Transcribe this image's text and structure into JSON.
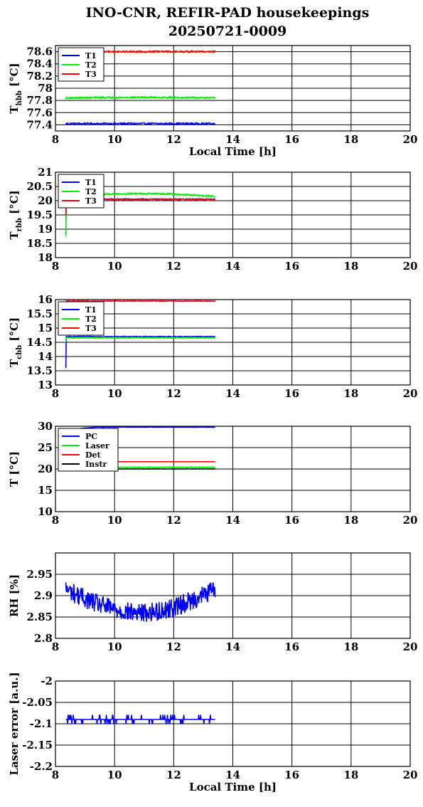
{
  "figure": {
    "title_line1": "INO-CNR, REFIR-PAD housekeepings",
    "title_line2": "20250721-0009"
  },
  "colors": {
    "blue": "#0000ff",
    "green": "#00ee00",
    "red": "#ff0000",
    "black": "#000000"
  },
  "chart_data": [
    {
      "id": "hbb",
      "type": "line",
      "ylabel_main": "T",
      "ylabel_sub": "hbb",
      "ylabel_unit": "[°C]",
      "xlabel": "Local Time [h]",
      "xlim": [
        8,
        20
      ],
      "xticks": [
        8,
        10,
        12,
        14,
        16,
        18,
        20
      ],
      "ylim": [
        77.3,
        78.7
      ],
      "yticks": [
        77.4,
        77.6,
        77.8,
        78,
        78.2,
        78.4,
        78.6
      ],
      "grid": true,
      "legend": "top-left",
      "series": [
        {
          "name": "T1",
          "color": "blue",
          "t_start": 8.35,
          "t_end": 13.4,
          "base": 77.42,
          "noise": 0.015,
          "drift": 0
        },
        {
          "name": "T2",
          "color": "green",
          "t_start": 8.35,
          "t_end": 13.4,
          "base": 77.84,
          "noise": 0.015,
          "drift": 0.01
        },
        {
          "name": "T3",
          "color": "red",
          "t_start": 8.35,
          "t_end": 13.4,
          "base": 78.6,
          "noise": 0.015,
          "drift": 0
        }
      ]
    },
    {
      "id": "rbb",
      "type": "line",
      "ylabel_main": "T",
      "ylabel_sub": "rbb",
      "ylabel_unit": "[°C]",
      "xlabel": "",
      "xlim": [
        8,
        20
      ],
      "xticks": [
        8,
        10,
        12,
        14,
        16,
        18,
        20
      ],
      "ylim": [
        18,
        21
      ],
      "yticks": [
        18,
        18.5,
        19,
        19.5,
        20,
        20.5,
        21
      ],
      "grid": true,
      "legend": "top-left",
      "series": [
        {
          "name": "T1",
          "color": "blue",
          "t_start": 8.35,
          "t_end": 13.4,
          "base": 20.05,
          "noise": 0.02,
          "drift": 0,
          "start_dip": 18.8
        },
        {
          "name": "T2",
          "color": "green",
          "t_start": 8.35,
          "t_end": 13.4,
          "base": 20.15,
          "noise": 0.03,
          "drift": 0.1,
          "start_dip": 18.75
        },
        {
          "name": "T3",
          "color": "red",
          "t_start": 8.35,
          "t_end": 13.4,
          "base": 20.05,
          "noise": 0.02,
          "drift": 0,
          "start_dip": 19.5
        }
      ]
    },
    {
      "id": "cbb",
      "type": "line",
      "ylabel_main": "T",
      "ylabel_sub": "cbb",
      "ylabel_unit": "[°C]",
      "xlabel": "",
      "xlim": [
        8,
        20
      ],
      "xticks": [
        8,
        10,
        12,
        14,
        16,
        18,
        20
      ],
      "ylim": [
        13,
        16
      ],
      "yticks": [
        13,
        13.5,
        14,
        14.5,
        15,
        15.5,
        16
      ],
      "grid": true,
      "legend": "top-left",
      "series": [
        {
          "name": "T1",
          "color": "blue",
          "t_start": 8.35,
          "t_end": 13.4,
          "base": 14.7,
          "noise": 0.015,
          "drift": 0,
          "start_dip": 13.6
        },
        {
          "name": "T2",
          "color": "green",
          "t_start": 8.35,
          "t_end": 13.4,
          "base": 14.66,
          "noise": 0.015,
          "drift": 0,
          "start_dip": 14.5
        },
        {
          "name": "T3",
          "color": "red",
          "t_start": 8.35,
          "t_end": 13.4,
          "base": 15.95,
          "noise": 0.015,
          "drift": 0
        }
      ]
    },
    {
      "id": "temps",
      "type": "line",
      "ylabel_main": "T [°C]",
      "ylabel_sub": "",
      "ylabel_unit": "",
      "xlabel": "",
      "xlim": [
        8,
        20
      ],
      "xticks": [
        8,
        10,
        12,
        14,
        16,
        18,
        20
      ],
      "ylim": [
        10,
        30
      ],
      "yticks": [
        10,
        15,
        20,
        25,
        30
      ],
      "grid": true,
      "legend": "top-left",
      "series": [
        {
          "name": "PC",
          "color": "blue",
          "t_start": 8.35,
          "t_end": 13.4,
          "base": 29.8,
          "noise": 0.04,
          "drift": 0,
          "rise_from": 28.8
        },
        {
          "name": "Laser",
          "color": "green",
          "t_start": 8.35,
          "t_end": 13.4,
          "base": 20.4,
          "noise": 0.1,
          "drift": 0
        },
        {
          "name": "Det",
          "color": "red",
          "t_start": 8.35,
          "t_end": 13.4,
          "base": 21.7,
          "noise": 0.02,
          "drift": 0
        },
        {
          "name": "Instr",
          "color": "black",
          "t_start": 8.35,
          "t_end": 13.4,
          "base": 20.0,
          "noise": 0.02,
          "drift": 0
        }
      ]
    },
    {
      "id": "rh",
      "type": "line",
      "ylabel_main": "RH [%]",
      "ylabel_sub": "",
      "ylabel_unit": "",
      "xlabel": "",
      "xlim": [
        8,
        20
      ],
      "xticks": [
        8,
        10,
        12,
        14,
        16,
        18,
        20
      ],
      "ylim": [
        2.8,
        3.0
      ],
      "yticks": [
        2.8,
        2.85,
        2.9,
        2.95
      ],
      "grid": true,
      "legend": "none",
      "series": [
        {
          "name": "",
          "color": "blue",
          "t_start": 8.35,
          "t_end": 13.4,
          "base": 2.915,
          "noise": 0.022,
          "drift": -0.055
        }
      ]
    },
    {
      "id": "laser_err",
      "type": "line",
      "ylabel_main": "Laser error [a.u.]",
      "ylabel_sub": "",
      "ylabel_unit": "",
      "xlabel": "Local Time [h]",
      "xlim": [
        8,
        20
      ],
      "xticks": [
        8,
        10,
        12,
        14,
        16,
        18,
        20
      ],
      "ylim": [
        -2.2,
        -2
      ],
      "yticks": [
        -2.2,
        -2.15,
        -2.1,
        -2.05,
        -2
      ],
      "grid": true,
      "legend": "none",
      "series": [
        {
          "name": "",
          "color": "blue",
          "t_start": 8.35,
          "t_end": 13.4,
          "base": -2.09,
          "noise": 0.006,
          "drift": 0,
          "quantum": 0.01
        }
      ]
    }
  ]
}
